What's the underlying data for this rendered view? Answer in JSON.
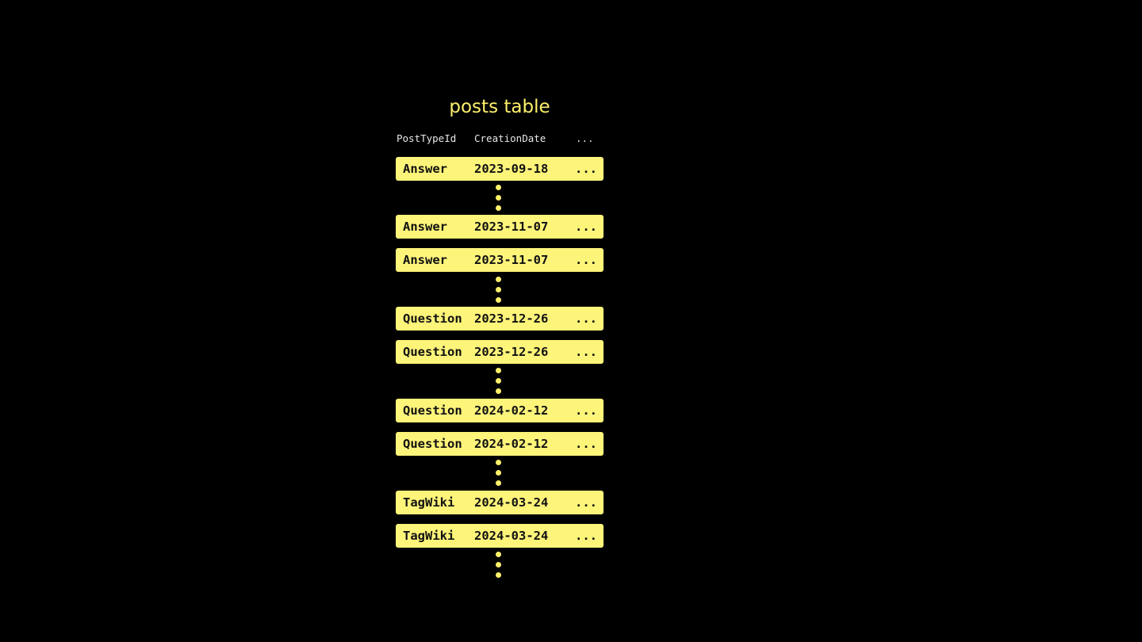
{
  "title": "posts table",
  "columns": [
    "PostTypeId",
    "CreationDate",
    "..."
  ],
  "rows": [
    [
      "Answer",
      "2023-09-18",
      "..."
    ],
    [
      "Answer",
      "2023-11-07",
      "..."
    ],
    [
      "Answer",
      "2023-11-07",
      "..."
    ],
    [
      "Question",
      "2023-12-26",
      "..."
    ],
    [
      "Question",
      "2023-12-26",
      "..."
    ],
    [
      "Question",
      "2024-02-12",
      "..."
    ],
    [
      "Question",
      "2024-02-12",
      "..."
    ],
    [
      "TagWiki",
      "2024-03-24",
      "..."
    ],
    [
      "TagWiki",
      "2024-03-24",
      "..."
    ]
  ],
  "colors": {
    "accent": "#fdf47a",
    "background": "#000000"
  }
}
